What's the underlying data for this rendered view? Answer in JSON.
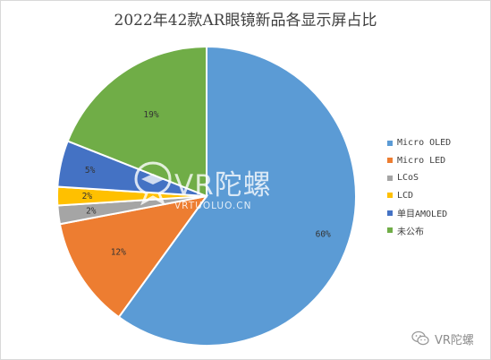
{
  "chart_data": {
    "type": "pie",
    "title": "2022年42款AR眼镜新品各显示屏占比",
    "categories": [
      "Micro OLED",
      "Micro LED",
      "LCoS",
      "LCD",
      "单目AMOLED",
      "未公布"
    ],
    "values": [
      60,
      12,
      2,
      2,
      5,
      19
    ],
    "value_labels": [
      "60%",
      "12%",
      "2%",
      "2%",
      "5%",
      "19%"
    ],
    "colors": [
      "#5b9bd5",
      "#ed7d31",
      "#a5a5a5",
      "#ffc000",
      "#4472c4",
      "#70ad47"
    ],
    "start_angle_deg": 0,
    "direction": "clockwise",
    "legend_position": "right"
  },
  "watermark": {
    "center_brand": "VR陀螺",
    "center_url": "VRTUOLUO.CN",
    "corner_brand": "VR陀螺",
    "corner_icon": "wechat-icon",
    "logo_icon": "vr-tuoluo-logo-icon"
  }
}
